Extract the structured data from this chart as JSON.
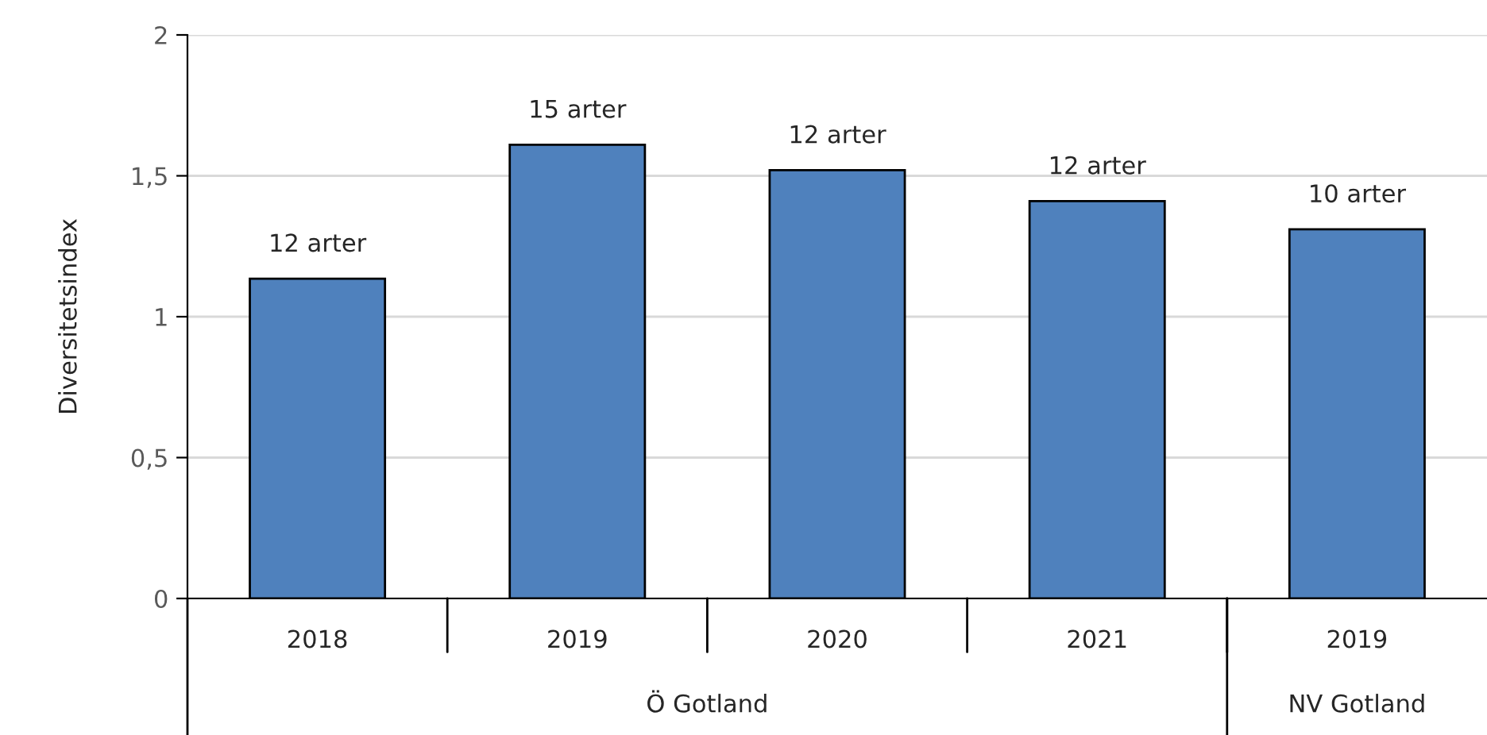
{
  "chart_data": {
    "type": "bar",
    "ylabel": "Diversitetsindex",
    "categories": [
      "2018",
      "2019",
      "2020",
      "2021",
      "2019"
    ],
    "values": [
      1.135,
      1.61,
      1.52,
      1.41,
      1.31
    ],
    "color": "#4f81bd",
    "ylim": [
      0,
      2
    ],
    "yticks": [
      0,
      {
        "value": 0.5,
        "label": "0,5"
      },
      1,
      {
        "value": 1.5,
        "label": "1,5"
      },
      2
    ],
    "grid": "y",
    "annotations": [
      "12 arter",
      "15 arter",
      "12 arter",
      "12 arter",
      "10 arter",
      "Ö Gotland",
      "NV Gotland"
    ]
  }
}
